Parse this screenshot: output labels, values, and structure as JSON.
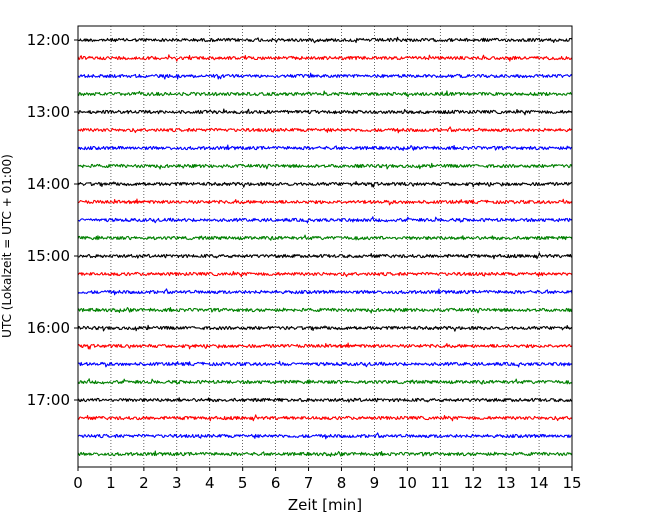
{
  "chart_data": {
    "type": "line",
    "title": "",
    "xlabel": "Zeit  [min]",
    "ylabel": "UTC (Lokalzeit = UTC + 01:00)",
    "xlim": [
      0,
      15
    ],
    "x_ticks": [
      0,
      1,
      2,
      3,
      4,
      5,
      6,
      7,
      8,
      9,
      10,
      11,
      12,
      13,
      14,
      15
    ],
    "y_tick_labels": [
      "12:00",
      "13:00",
      "14:00",
      "15:00",
      "16:00",
      "17:00"
    ],
    "grid_x": true,
    "grid_style": "dotted",
    "trace_interval_min": 15,
    "trace_start": "12:00",
    "trace_end": "17:45",
    "trace_colors": [
      "#000000",
      "#ff0000",
      "#0000ff",
      "#008000"
    ],
    "traces": [
      {
        "start": "12:00"
      },
      {
        "start": "12:15"
      },
      {
        "start": "12:30"
      },
      {
        "start": "12:45"
      },
      {
        "start": "13:00"
      },
      {
        "start": "13:15"
      },
      {
        "start": "13:30"
      },
      {
        "start": "13:45"
      },
      {
        "start": "14:00"
      },
      {
        "start": "14:15"
      },
      {
        "start": "14:30"
      },
      {
        "start": "14:45"
      },
      {
        "start": "15:00"
      },
      {
        "start": "15:15"
      },
      {
        "start": "15:30"
      },
      {
        "start": "15:45"
      },
      {
        "start": "16:00"
      },
      {
        "start": "16:15"
      },
      {
        "start": "16:30"
      },
      {
        "start": "16:45"
      },
      {
        "start": "17:00"
      },
      {
        "start": "17:15"
      },
      {
        "start": "17:30"
      },
      {
        "start": "17:45"
      }
    ]
  }
}
